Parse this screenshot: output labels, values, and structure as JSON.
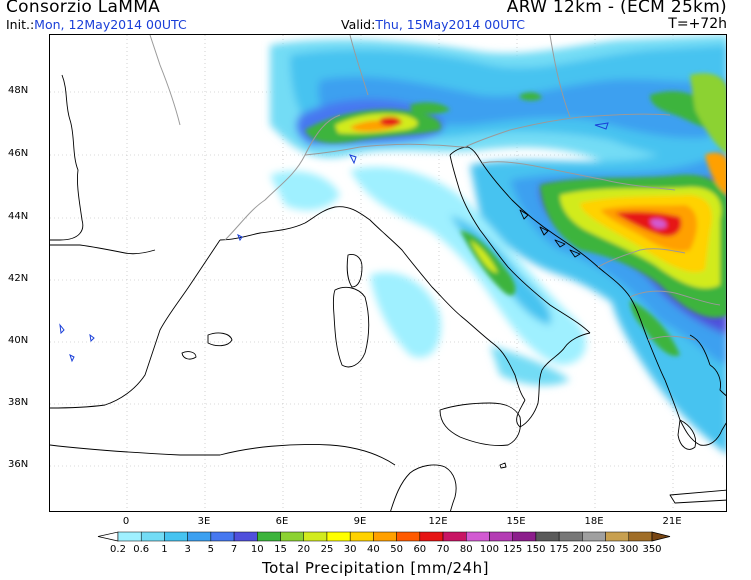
{
  "header": {
    "title_left": "Consorzio LaMMA",
    "title_right": "ARW 12km - (ECM 25km)",
    "init_label": "Init.:",
    "init_value": "Mon, 12May2014 00UTC",
    "valid_label": "Valid:",
    "valid_value": "Thu, 15May2014 00UTC",
    "forecast_step": "T=+72h"
  },
  "axes": {
    "lat_labels": [
      "48N",
      "46N",
      "44N",
      "42N",
      "40N",
      "38N",
      "36N"
    ],
    "lon_labels": [
      "0",
      "3E",
      "6E",
      "9E",
      "12E",
      "15E",
      "18E",
      "21E"
    ]
  },
  "legend": {
    "title": "Total Precipitation [mm/24h]",
    "tick_labels": [
      "0.2",
      "0.6",
      "1",
      "3",
      "5",
      "7",
      "10",
      "15",
      "20",
      "25",
      "30",
      "40",
      "50",
      "60",
      "70",
      "80",
      "100",
      "125",
      "150",
      "175",
      "200",
      "250",
      "300",
      "350"
    ],
    "colors": [
      "#ffffff",
      "#9ff0ff",
      "#73dcf5",
      "#46c3f0",
      "#3ca0f0",
      "#4678f0",
      "#5050dc",
      "#3cb43c",
      "#8cd232",
      "#d2eb1e",
      "#ffff00",
      "#ffd200",
      "#ffa000",
      "#ff5a00",
      "#e61414",
      "#c81464",
      "#d25ad2",
      "#b43cb4",
      "#8c1e8c",
      "#5a5a5a",
      "#787878",
      "#a0a0a0",
      "#c8a050",
      "#a06e28",
      "#784614"
    ]
  },
  "colors": {
    "coastline": "#000000",
    "border": "#9a9a9a",
    "grid": "#b4b4b4",
    "accent_blue": "#1a3fd8"
  }
}
